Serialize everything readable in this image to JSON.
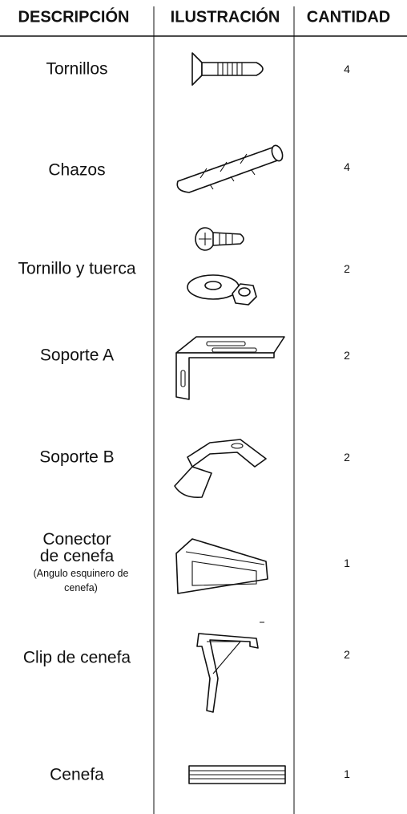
{
  "table": {
    "headers": [
      "DESCRIPCIÓN",
      "ILUSTRACIÓN",
      "CANTIDAD"
    ],
    "rows": [
      {
        "description": "Tornillos",
        "quantity": 4
      },
      {
        "description": "Chazos",
        "quantity": 4
      },
      {
        "description": "Tornillo y tuerca",
        "quantity": 2
      },
      {
        "description": "Soporte A",
        "quantity": 2
      },
      {
        "description": "Soporte B",
        "quantity": 2
      },
      {
        "description": "Conector de cenefa",
        "note": "(Angulo esquinero de cenefa)",
        "quantity": 1
      },
      {
        "description": "Clip de cenefa",
        "quantity": 2
      },
      {
        "description": "Cenefa",
        "quantity": 1
      }
    ]
  }
}
